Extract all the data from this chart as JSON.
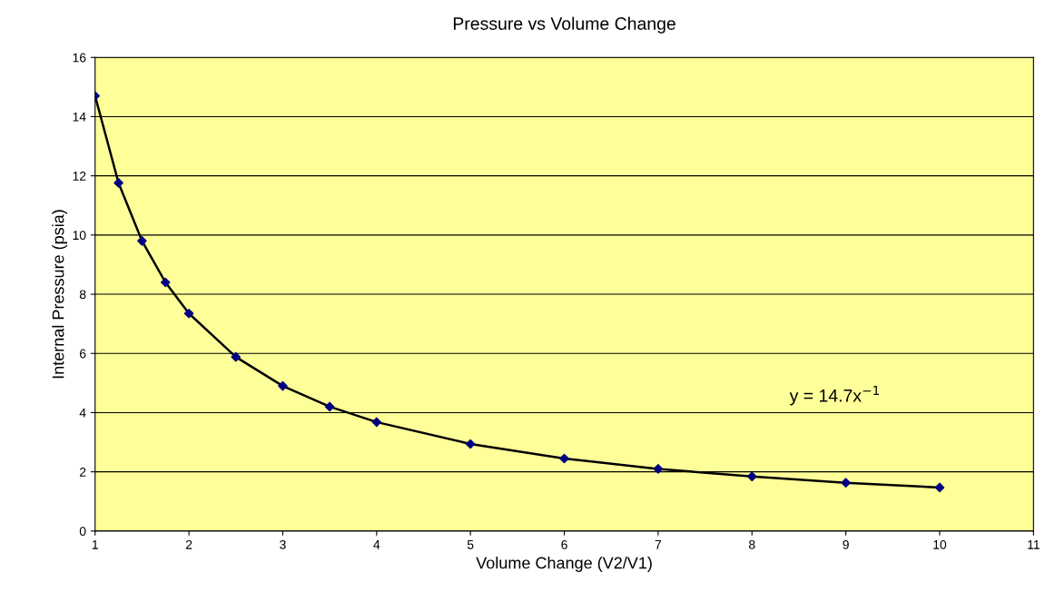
{
  "chart_data": {
    "type": "scatter",
    "title": "Pressure vs Volume Change",
    "xlabel": "Volume Change (V2/V1)",
    "ylabel": "Internal Pressure (psia)",
    "series": [
      {
        "type": "line",
        "color": "#000000",
        "marker": "none",
        "x": [
          1,
          1.25,
          1.5,
          1.75,
          2,
          2.5,
          3,
          3.5,
          4,
          5,
          6,
          7,
          8,
          9,
          10
        ],
        "values": [
          14.7,
          11.76,
          9.8,
          8.4,
          7.35,
          5.88,
          4.9,
          4.2,
          3.68,
          2.94,
          2.45,
          2.1,
          1.84,
          1.63,
          1.47
        ]
      },
      {
        "color": "#000080",
        "marker": "diamond",
        "x": [
          1,
          1.25,
          1.5,
          1.75,
          2,
          2.5,
          3,
          3.5,
          4,
          5,
          6,
          7,
          8,
          9,
          10
        ],
        "values": [
          14.7,
          11.76,
          9.8,
          8.4,
          7.35,
          5.88,
          4.9,
          4.2,
          3.68,
          2.94,
          2.45,
          2.1,
          1.84,
          1.63,
          1.47
        ]
      }
    ],
    "annotations": [
      "y = 14.7x$^{−1}$"
    ],
    "xlim": [
      1,
      11
    ],
    "xticks": [
      1,
      2,
      3,
      4,
      5,
      6,
      7,
      8,
      9,
      10,
      11
    ],
    "ylim": [
      0,
      16
    ],
    "yticks": [
      0,
      2,
      4,
      6,
      8,
      10,
      12,
      14,
      16
    ],
    "grid": "y",
    "legend": false
  }
}
